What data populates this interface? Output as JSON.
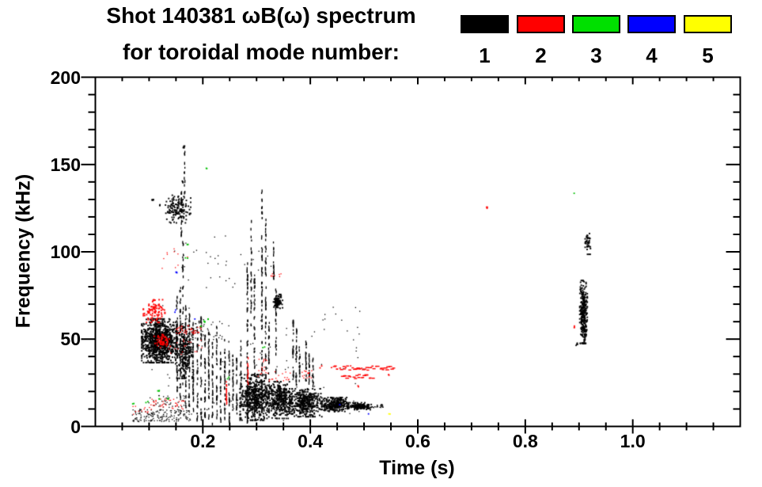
{
  "figure": {
    "title_line1": "Shot 140381 ωB(ω) spectrum",
    "title_line2": "for toroidal mode number:"
  },
  "legend": {
    "modes": [
      {
        "label": "1",
        "color": "#000000"
      },
      {
        "label": "2",
        "color": "#ff0000"
      },
      {
        "label": "3",
        "color": "#00e000"
      },
      {
        "label": "4",
        "color": "#0000ff"
      },
      {
        "label": "5",
        "color": "#ffff00"
      }
    ]
  },
  "axes": {
    "x": {
      "label": "Time (s)",
      "range": [
        0,
        1.2
      ],
      "minor_step": 0.05,
      "major_ticks": [
        {
          "value": 0.2,
          "label": "0.2"
        },
        {
          "value": 0.4,
          "label": "0.4"
        },
        {
          "value": 0.6,
          "label": "0.6"
        },
        {
          "value": 0.8,
          "label": "0.8"
        },
        {
          "value": 1.0,
          "label": "1.0"
        }
      ]
    },
    "y": {
      "label": "Frequency (kHz)",
      "range": [
        0,
        200
      ],
      "minor_step": 10,
      "major_ticks": [
        {
          "value": 0,
          "label": "0"
        },
        {
          "value": 50,
          "label": "50"
        },
        {
          "value": 100,
          "label": "100"
        },
        {
          "value": 150,
          "label": "150"
        },
        {
          "value": 200,
          "label": "200"
        }
      ]
    }
  },
  "chart_data": {
    "type": "scatter",
    "title": "Shot 140381 ωB(ω) spectrum for toroidal mode number 1-5",
    "xlabel": "Time (s)",
    "ylabel": "Frequency (kHz)",
    "xlim": [
      0,
      1.2
    ],
    "ylim": [
      0,
      200
    ],
    "grid": false,
    "legend_position": "top",
    "series": [
      {
        "name": "mode 1",
        "mode": 1,
        "color": "#000000",
        "clusters": [
          {
            "shape": "blob",
            "t": [
              0.085,
              0.15
            ],
            "f": [
              37,
              62
            ],
            "n": 1000
          },
          {
            "shape": "blob",
            "t": [
              0.148,
              0.18
            ],
            "f": [
              28,
              58
            ],
            "n": 250
          },
          {
            "shape": "blob",
            "t": [
              0.128,
              0.176
            ],
            "f": [
              117,
              133
            ],
            "n": 140
          },
          {
            "shape": "blob",
            "t": [
              0.33,
              0.347
            ],
            "f": [
              68,
              76
            ],
            "n": 90
          },
          {
            "shape": "blob",
            "t": [
              0.268,
              0.322
            ],
            "f": [
              4,
              30
            ],
            "n": 520
          },
          {
            "shape": "blob",
            "t": [
              0.318,
              0.365
            ],
            "f": [
              5,
              26
            ],
            "n": 380
          },
          {
            "shape": "blob",
            "t": [
              0.36,
              0.42
            ],
            "f": [
              6,
              22
            ],
            "n": 420
          },
          {
            "shape": "blob",
            "t": [
              0.42,
              0.47
            ],
            "f": [
              9,
              17
            ],
            "n": 300
          },
          {
            "shape": "blob",
            "t": [
              0.468,
              0.512
            ],
            "f": [
              10,
              14
            ],
            "n": 160
          },
          {
            "shape": "uniform",
            "t": [
              0.512,
              0.535
            ],
            "f": [
              11,
              13
            ],
            "n": 25
          },
          {
            "shape": "uniform",
            "t": [
              0.068,
              0.175
            ],
            "f": [
              3,
              10
            ],
            "n": 170
          },
          {
            "shape": "uniform",
            "t": [
              0.09,
              0.175
            ],
            "f": [
              10,
              18
            ],
            "n": 40
          },
          {
            "shape": "blob",
            "t": [
              0.9,
              0.914
            ],
            "f": [
              48,
              84
            ],
            "n": 300
          },
          {
            "shape": "blob",
            "t": [
              0.91,
              0.92
            ],
            "f": [
              99,
              112
            ],
            "n": 40
          },
          {
            "shape": "uniform",
            "t": [
              0.08,
              0.5
            ],
            "f": [
              3,
              70
            ],
            "n": 90
          },
          {
            "shape": "uniform",
            "t": [
              0.14,
              0.33
            ],
            "f": [
              75,
              112
            ],
            "n": 35
          },
          {
            "shape": "uniform",
            "t": [
              0.155,
              0.235
            ],
            "f": [
              50,
              62
            ],
            "n": 60
          }
        ],
        "streaks": [
          [
            0.152,
            20,
            75,
            40
          ],
          [
            0.158,
            15,
            80,
            45
          ],
          [
            0.163,
            25,
            108,
            40
          ],
          [
            0.168,
            10,
            70,
            40
          ],
          [
            0.175,
            8,
            68,
            40
          ],
          [
            0.182,
            5,
            60,
            38
          ],
          [
            0.19,
            2,
            56,
            36
          ],
          [
            0.197,
            5,
            64,
            38
          ],
          [
            0.204,
            2,
            60,
            36
          ],
          [
            0.211,
            4,
            55,
            34
          ],
          [
            0.218,
            2,
            50,
            32
          ],
          [
            0.226,
            5,
            58,
            34
          ],
          [
            0.233,
            3,
            46,
            30
          ],
          [
            0.241,
            5,
            54,
            32
          ],
          [
            0.249,
            3,
            50,
            30
          ],
          [
            0.256,
            9,
            45,
            26
          ],
          [
            0.263,
            5,
            40,
            24
          ],
          [
            0.271,
            5,
            50,
            28
          ],
          [
            0.283,
            3,
            95,
            70
          ],
          [
            0.29,
            55,
            120,
            30
          ],
          [
            0.296,
            8,
            90,
            45
          ],
          [
            0.31,
            3,
            136,
            85
          ],
          [
            0.317,
            8,
            120,
            60
          ],
          [
            0.323,
            10,
            60,
            30
          ],
          [
            0.332,
            84,
            106,
            18
          ],
          [
            0.336,
            30,
            80,
            30
          ],
          [
            0.368,
            27,
            64,
            30
          ],
          [
            0.374,
            24,
            60,
            26
          ],
          [
            0.38,
            26,
            46,
            18
          ],
          [
            0.392,
            24,
            50,
            22
          ],
          [
            0.398,
            23,
            42,
            18
          ],
          [
            0.405,
            24,
            40,
            14
          ],
          [
            0.16,
            110,
            135,
            20
          ],
          [
            0.166,
            128,
            158,
            14
          ]
        ],
        "dots": [
          [
            0.165,
            160,
            6
          ],
          [
            0.164,
            140,
            4
          ],
          [
            0.106,
            130,
            5
          ],
          [
            0.896,
            47,
            4
          ],
          [
            0.12,
            127,
            3
          ]
        ]
      },
      {
        "name": "mode 2",
        "mode": 2,
        "color": "#ff0000",
        "clusters": [
          {
            "shape": "blob",
            "t": [
              0.088,
              0.128
            ],
            "f": [
              60,
              73
            ],
            "n": 90
          },
          {
            "shape": "blob",
            "t": [
              0.108,
              0.138
            ],
            "f": [
              45,
              53
            ],
            "n": 55
          },
          {
            "shape": "uniform",
            "t": [
              0.148,
              0.196
            ],
            "f": [
              53,
              58
            ],
            "n": 45
          },
          {
            "shape": "uniform",
            "t": [
              0.1,
              0.165
            ],
            "f": [
              10,
              16
            ],
            "n": 40
          },
          {
            "shape": "uniform",
            "t": [
              0.068,
              0.1
            ],
            "f": [
              7,
              12
            ],
            "n": 12
          },
          {
            "shape": "uniform",
            "t": [
              0.135,
              0.2
            ],
            "f": [
              40,
              50
            ],
            "n": 18
          },
          {
            "shape": "uniform",
            "t": [
              0.3,
              0.318
            ],
            "f": [
              28,
              40
            ],
            "n": 16
          },
          {
            "shape": "uniform",
            "t": [
              0.32,
              0.362
            ],
            "f": [
              26,
              32
            ],
            "n": 18
          },
          {
            "shape": "uniform",
            "t": [
              0.378,
              0.405
            ],
            "f": [
              28,
              33
            ],
            "n": 12
          },
          {
            "shape": "uniform",
            "t": [
              0.325,
              0.345
            ],
            "f": [
              84,
              88
            ],
            "n": 8
          },
          {
            "shape": "uniform",
            "t": [
              0.115,
              0.175
            ],
            "f": [
              85,
              103
            ],
            "n": 10
          },
          {
            "shape": "band",
            "t": [
              0.437,
              0.553
            ],
            "f": [
              32.5,
              35
            ],
            "n": 40
          },
          {
            "shape": "band",
            "t": [
              0.455,
              0.515
            ],
            "f": [
              27.5,
              30
            ],
            "n": 20
          }
        ],
        "streaks": [
          [
            0.244,
            13,
            26,
            16
          ],
          [
            0.284,
            24,
            40,
            12
          ]
        ],
        "dots": [
          [
            0.729,
            125,
            3
          ],
          [
            0.893,
            57,
            3
          ],
          [
            0.49,
            23,
            2
          ],
          [
            0.545,
            29.5,
            2
          ],
          [
            0.42,
            34,
            2
          ],
          [
            0.398,
            31,
            2
          ]
        ]
      },
      {
        "name": "mode 3",
        "mode": 3,
        "color": "#00c000",
        "clusters": [],
        "streaks": [],
        "dots": [
          [
            0.207,
            148,
            2
          ],
          [
            0.171,
            104,
            2
          ],
          [
            0.17,
            96,
            2
          ],
          [
            0.202,
            60,
            3
          ],
          [
            0.209,
            61,
            2
          ],
          [
            0.196,
            57,
            2
          ],
          [
            0.118,
            20,
            3
          ],
          [
            0.119,
            16,
            2
          ],
          [
            0.07,
            13,
            2
          ],
          [
            0.137,
            15.5,
            2
          ],
          [
            0.096,
            14,
            2
          ],
          [
            0.248,
            27.5,
            2
          ],
          [
            0.314,
            45,
            2
          ],
          [
            0.892,
            134,
            1
          ]
        ]
      },
      {
        "name": "mode 4",
        "mode": 4,
        "color": "#0000ff",
        "clusters": [],
        "streaks": [],
        "dots": [
          [
            0.152,
            88,
            3
          ],
          [
            0.15,
            66,
            2
          ],
          [
            0.184,
            61.5,
            1
          ],
          [
            0.455,
            11.8,
            1
          ],
          [
            0.51,
            6.5,
            1
          ]
        ]
      },
      {
        "name": "mode 5",
        "mode": 5,
        "color": "#ffff00",
        "clusters": [],
        "streaks": [],
        "dots": [
          [
            0.547,
            6.8,
            2
          ]
        ]
      }
    ]
  }
}
